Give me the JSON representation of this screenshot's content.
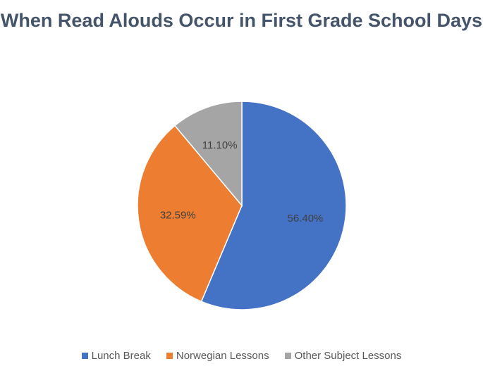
{
  "chart_data": {
    "type": "pie",
    "title": "When Read Alouds Occur in First Grade School Days",
    "categories": [
      "Lunch Break",
      "Norwegian Lessons",
      "Other Subject Lessons"
    ],
    "values": [
      56.4,
      32.59,
      11.1
    ],
    "data_labels": [
      "56.40%",
      "32.59%",
      "11.10%"
    ],
    "colors": [
      "#4472c4",
      "#ed7d31",
      "#a5a5a5"
    ],
    "legend_position": "bottom",
    "start_angle": "12 o'clock",
    "direction": "clockwise"
  }
}
